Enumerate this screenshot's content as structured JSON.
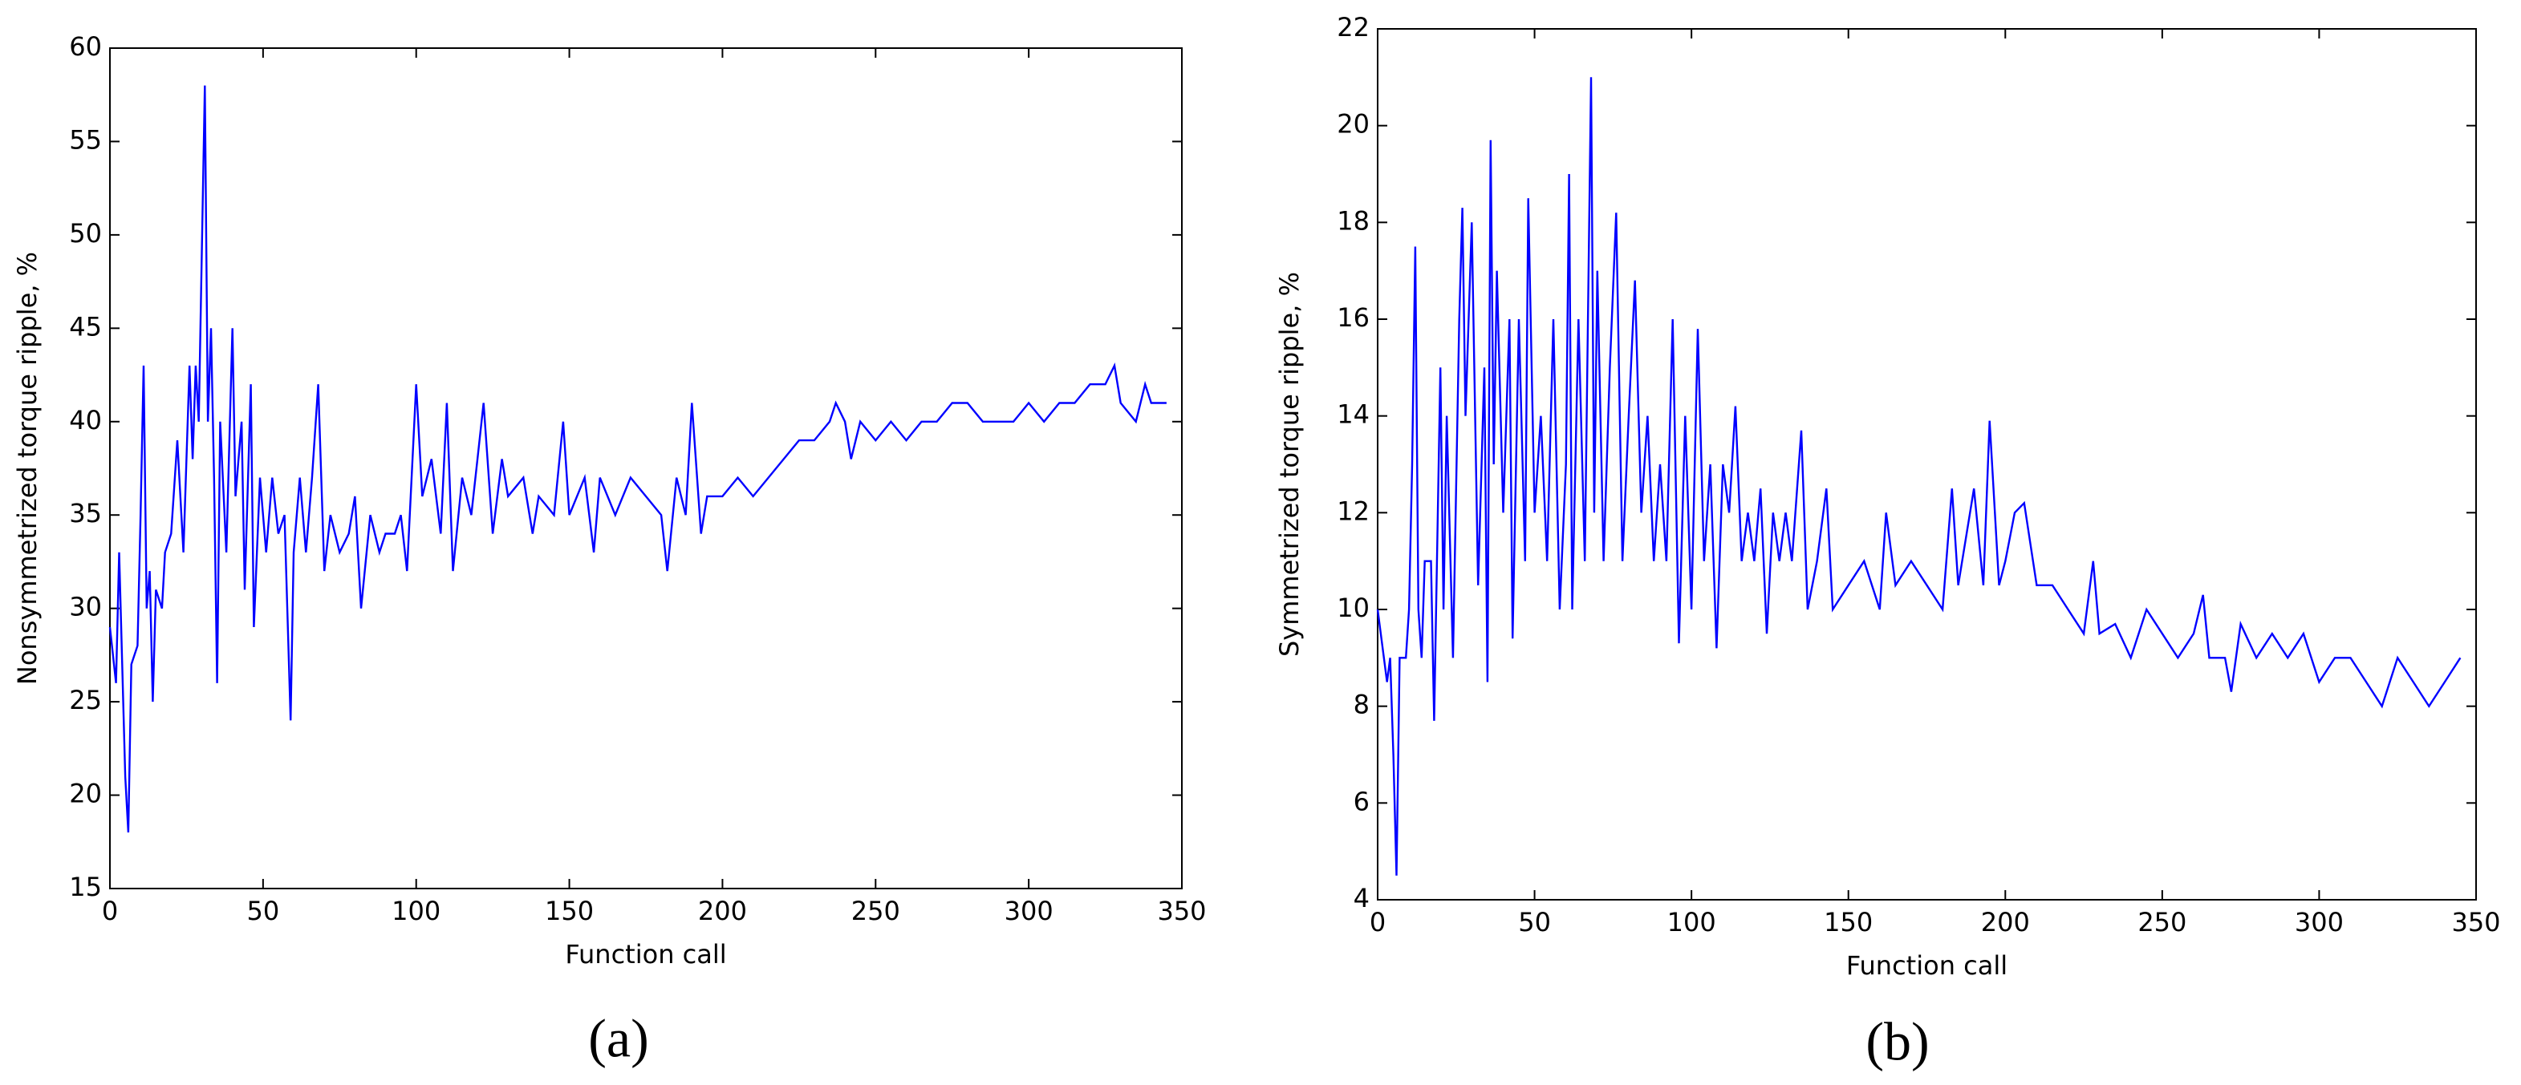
{
  "chart_data": [
    {
      "type": "line",
      "caption": "(a)",
      "xlabel": "Function call",
      "ylabel": "Nonsymmetrized torque ripple, %",
      "color": "#0000ff",
      "xlim": [
        0,
        350
      ],
      "xticks": [
        0,
        50,
        100,
        150,
        200,
        250,
        300,
        350
      ],
      "ylim": [
        15,
        60
      ],
      "yticks": [
        15,
        20,
        25,
        30,
        35,
        40,
        45,
        50,
        55,
        60
      ],
      "x": [
        0,
        2,
        3,
        4,
        5,
        6,
        7,
        9,
        10,
        11,
        12,
        13,
        14,
        15,
        17,
        18,
        20,
        22,
        24,
        26,
        27,
        28,
        29,
        30,
        31,
        32,
        33,
        34,
        35,
        36,
        38,
        40,
        41,
        43,
        44,
        46,
        47,
        49,
        51,
        53,
        55,
        57,
        59,
        60,
        62,
        64,
        66,
        68,
        70,
        72,
        75,
        78,
        80,
        82,
        85,
        88,
        90,
        93,
        95,
        97,
        100,
        102,
        105,
        108,
        110,
        112,
        115,
        118,
        120,
        122,
        125,
        128,
        130,
        135,
        138,
        140,
        145,
        148,
        150,
        155,
        158,
        160,
        165,
        170,
        175,
        180,
        182,
        185,
        188,
        190,
        193,
        195,
        200,
        205,
        210,
        215,
        220,
        225,
        230,
        235,
        237,
        240,
        242,
        245,
        250,
        255,
        260,
        265,
        270,
        275,
        280,
        285,
        290,
        295,
        300,
        305,
        310,
        315,
        320,
        325,
        328,
        330,
        335,
        338,
        340,
        345
      ],
      "values": [
        29,
        26,
        33,
        27,
        21,
        18,
        27,
        28,
        35,
        43,
        30,
        32,
        25,
        31,
        30,
        33,
        34,
        39,
        33,
        43,
        38,
        43,
        40,
        49,
        58,
        40,
        45,
        37,
        26,
        40,
        33,
        45,
        36,
        40,
        31,
        42,
        29,
        37,
        33,
        37,
        34,
        35,
        24,
        33,
        37,
        33,
        37,
        42,
        32,
        35,
        33,
        34,
        36,
        30,
        35,
        33,
        34,
        34,
        35,
        32,
        42,
        36,
        38,
        34,
        41,
        32,
        37,
        35,
        38,
        41,
        34,
        38,
        36,
        37,
        34,
        36,
        35,
        40,
        35,
        37,
        33,
        37,
        35,
        37,
        36,
        35,
        32,
        37,
        35,
        41,
        34,
        36,
        36,
        37,
        36,
        37,
        38,
        39,
        39,
        40,
        41,
        40,
        38,
        40,
        39,
        40,
        39,
        40,
        40,
        41,
        41,
        40,
        40,
        40,
        41,
        40,
        41,
        41,
        42,
        42,
        43,
        41,
        40,
        42,
        41,
        41
      ]
    },
    {
      "type": "line",
      "caption": "(b)",
      "xlabel": "Function call",
      "ylabel": "Symmetrized torque ripple, %",
      "color": "#0000ff",
      "xlim": [
        0,
        350
      ],
      "xticks": [
        0,
        50,
        100,
        150,
        200,
        250,
        300,
        350
      ],
      "ylim": [
        4,
        22
      ],
      "yticks": [
        4,
        6,
        8,
        10,
        12,
        14,
        16,
        18,
        20,
        22
      ],
      "x": [
        0,
        2,
        3,
        4,
        5,
        6,
        7,
        9,
        10,
        11,
        12,
        13,
        14,
        15,
        17,
        18,
        20,
        21,
        22,
        24,
        26,
        27,
        28,
        30,
        32,
        34,
        35,
        36,
        37,
        38,
        40,
        42,
        43,
        45,
        47,
        48,
        50,
        52,
        54,
        56,
        58,
        60,
        61,
        62,
        64,
        66,
        68,
        69,
        70,
        72,
        74,
        76,
        78,
        80,
        82,
        84,
        86,
        88,
        90,
        92,
        94,
        96,
        98,
        100,
        102,
        104,
        106,
        108,
        110,
        112,
        114,
        116,
        118,
        120,
        122,
        124,
        126,
        128,
        130,
        132,
        135,
        137,
        140,
        143,
        145,
        150,
        155,
        160,
        162,
        165,
        170,
        175,
        180,
        183,
        185,
        190,
        193,
        195,
        198,
        200,
        203,
        206,
        210,
        215,
        220,
        225,
        228,
        230,
        235,
        240,
        245,
        250,
        255,
        260,
        263,
        265,
        270,
        272,
        275,
        280,
        285,
        290,
        295,
        300,
        305,
        310,
        315,
        320,
        325,
        330,
        335,
        340,
        345
      ],
      "values": [
        10,
        9,
        8.5,
        9,
        7,
        4.5,
        9,
        9,
        10,
        13,
        17.5,
        10,
        9,
        11,
        11,
        7.7,
        15,
        10,
        14,
        9,
        16,
        18.3,
        14,
        18,
        10.5,
        15,
        8.5,
        19.7,
        13,
        17,
        12,
        16,
        9.4,
        16,
        11,
        18.5,
        12,
        14,
        11,
        16,
        10,
        13,
        19,
        10,
        16,
        11,
        21,
        12,
        17,
        11,
        15,
        18.2,
        11,
        14,
        16.8,
        12,
        14,
        11,
        13,
        11,
        16,
        9.3,
        14,
        10,
        15.8,
        11,
        13,
        9.2,
        13,
        12,
        14.2,
        11,
        12,
        11,
        12.5,
        9.5,
        12,
        11,
        12,
        11,
        13.7,
        10,
        11,
        12.5,
        10,
        10.5,
        11,
        10,
        12,
        10.5,
        11,
        10.5,
        10,
        12.5,
        10.5,
        12.5,
        10.5,
        13.9,
        10.5,
        11,
        12,
        12.2,
        10.5,
        10.5,
        10,
        9.5,
        11,
        9.5,
        9.7,
        9,
        10,
        9.5,
        9,
        9.5,
        10.3,
        9,
        9,
        8.3,
        9.7,
        9,
        9.5,
        9,
        9.5,
        8.5,
        9,
        9,
        8.5,
        8,
        9,
        8.5,
        8,
        8.5,
        9
      ]
    }
  ]
}
